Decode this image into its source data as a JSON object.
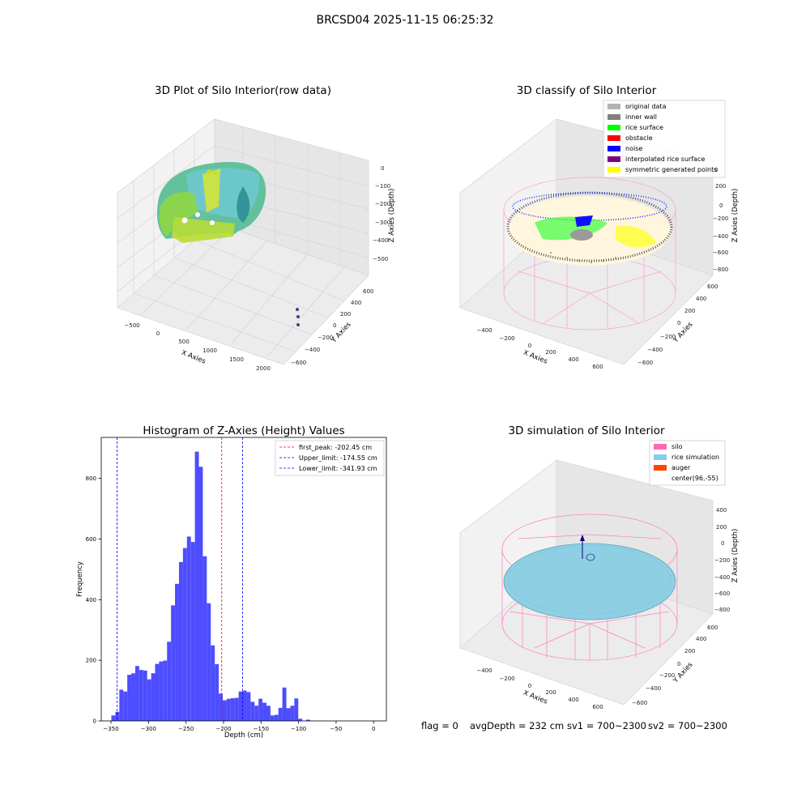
{
  "figure": {
    "suptitle": "BRCSD04 2025-11-15 06:25:32",
    "footer": {
      "flag": "flag = 0",
      "avg_depth": "avgDepth = 232 cm",
      "sv1": "sv1 = 700~2300",
      "sv2": "sv2 = 700~2300"
    }
  },
  "panel_raw": {
    "title": "3D Plot of Silo Interior(row data)",
    "xlabel": "X Axies",
    "ylabel": "Y Axies",
    "zlabel": "Z Axies (Depth)",
    "x_ticks": [
      "−500",
      "0",
      "500",
      "1000",
      "1500",
      "2000"
    ],
    "y_ticks": [
      "−600",
      "−400",
      "−200",
      "0",
      "200",
      "400",
      "600"
    ],
    "z_ticks": [
      "0",
      "−100",
      "−200",
      "−300",
      "−400",
      "−500"
    ]
  },
  "panel_classify": {
    "title": "3D classify of Silo Interior",
    "xlabel": "X Axies",
    "ylabel": "Y Axies",
    "zlabel": "Z Axies (Depth)",
    "x_ticks": [
      "−400",
      "−200",
      "0",
      "200",
      "400",
      "600"
    ],
    "y_ticks": [
      "−600",
      "−400",
      "−200",
      "0",
      "200",
      "400",
      "600"
    ],
    "z_ticks": [
      "200",
      "0",
      "−200",
      "−400",
      "−600",
      "−800"
    ],
    "z_top_partial": "0",
    "legend": [
      {
        "label": "original data",
        "color": "#b3b3b3"
      },
      {
        "label": "inner wall",
        "color": "#808080"
      },
      {
        "label": "rice surface",
        "color": "#00ff00"
      },
      {
        "label": "obstacle",
        "color": "#ff0000"
      },
      {
        "label": "noise",
        "color": "#0000ff"
      },
      {
        "label": "interpolated rice surface",
        "color": "#800080"
      },
      {
        "label": "symmetric generated points",
        "color": "#ffff00"
      }
    ]
  },
  "panel_sim": {
    "title": "3D simulation of Silo Interior",
    "xlabel": "X Axies",
    "ylabel": "Y Axies",
    "zlabel": "Z Axies (Depth)",
    "x_ticks": [
      "−400",
      "−200",
      "0",
      "200",
      "400",
      "600"
    ],
    "y_ticks": [
      "−600",
      "−400",
      "−200",
      "0",
      "200",
      "400",
      "600"
    ],
    "z_ticks": [
      "400",
      "200",
      "0",
      "−200",
      "−400",
      "−600",
      "−800"
    ],
    "legend": [
      {
        "label": "silo",
        "color": "#ff69b4"
      },
      {
        "label": "rice simulation",
        "color": "#87ceeb"
      },
      {
        "label": "auger",
        "color": "#ff4500"
      },
      {
        "label": "center(96,-55)",
        "color": ""
      }
    ]
  },
  "chart_data": {
    "type": "bar",
    "title": "Histogram of Z-Axies (Height) Values",
    "xlabel": "Depth (cm)",
    "ylabel": "Frequency",
    "xlim": [
      -363,
      17
    ],
    "ylim": [
      0,
      935
    ],
    "bin_start": -349.5,
    "bin_width": 5.3,
    "bar_color": "#4d4dff",
    "values": [
      18,
      30,
      103,
      97,
      152,
      157,
      181,
      168,
      166,
      137,
      157,
      188,
      196,
      199,
      261,
      381,
      452,
      524,
      570,
      608,
      590,
      888,
      838,
      543,
      388,
      249,
      187,
      90,
      68,
      73,
      75,
      76,
      97,
      100,
      95,
      63,
      50,
      73,
      60,
      50,
      18,
      20,
      43,
      110,
      42,
      50,
      74,
      7,
      0,
      4
    ],
    "x_ticks": [
      -350,
      -300,
      -250,
      -200,
      -150,
      -100,
      -50,
      0
    ],
    "x_tick_labels": [
      "−350",
      "−300",
      "−250",
      "−200",
      "−150",
      "−100",
      "−50",
      "0"
    ],
    "y_ticks": [
      0,
      200,
      400,
      600,
      800
    ],
    "y_tick_labels": [
      "0",
      "200",
      "400",
      "600",
      "800"
    ],
    "vlines": [
      {
        "name": "first_peak: -202.45 cm",
        "x": -202.45,
        "color": "#ff0000"
      },
      {
        "name": "Upper_limit: -174.55 cm",
        "x": -174.55,
        "color": "#0000ff"
      },
      {
        "name": "Lower_limit: -341.93 cm",
        "x": -341.93,
        "color": "#0000ff"
      }
    ],
    "legend_position": "upper right"
  }
}
